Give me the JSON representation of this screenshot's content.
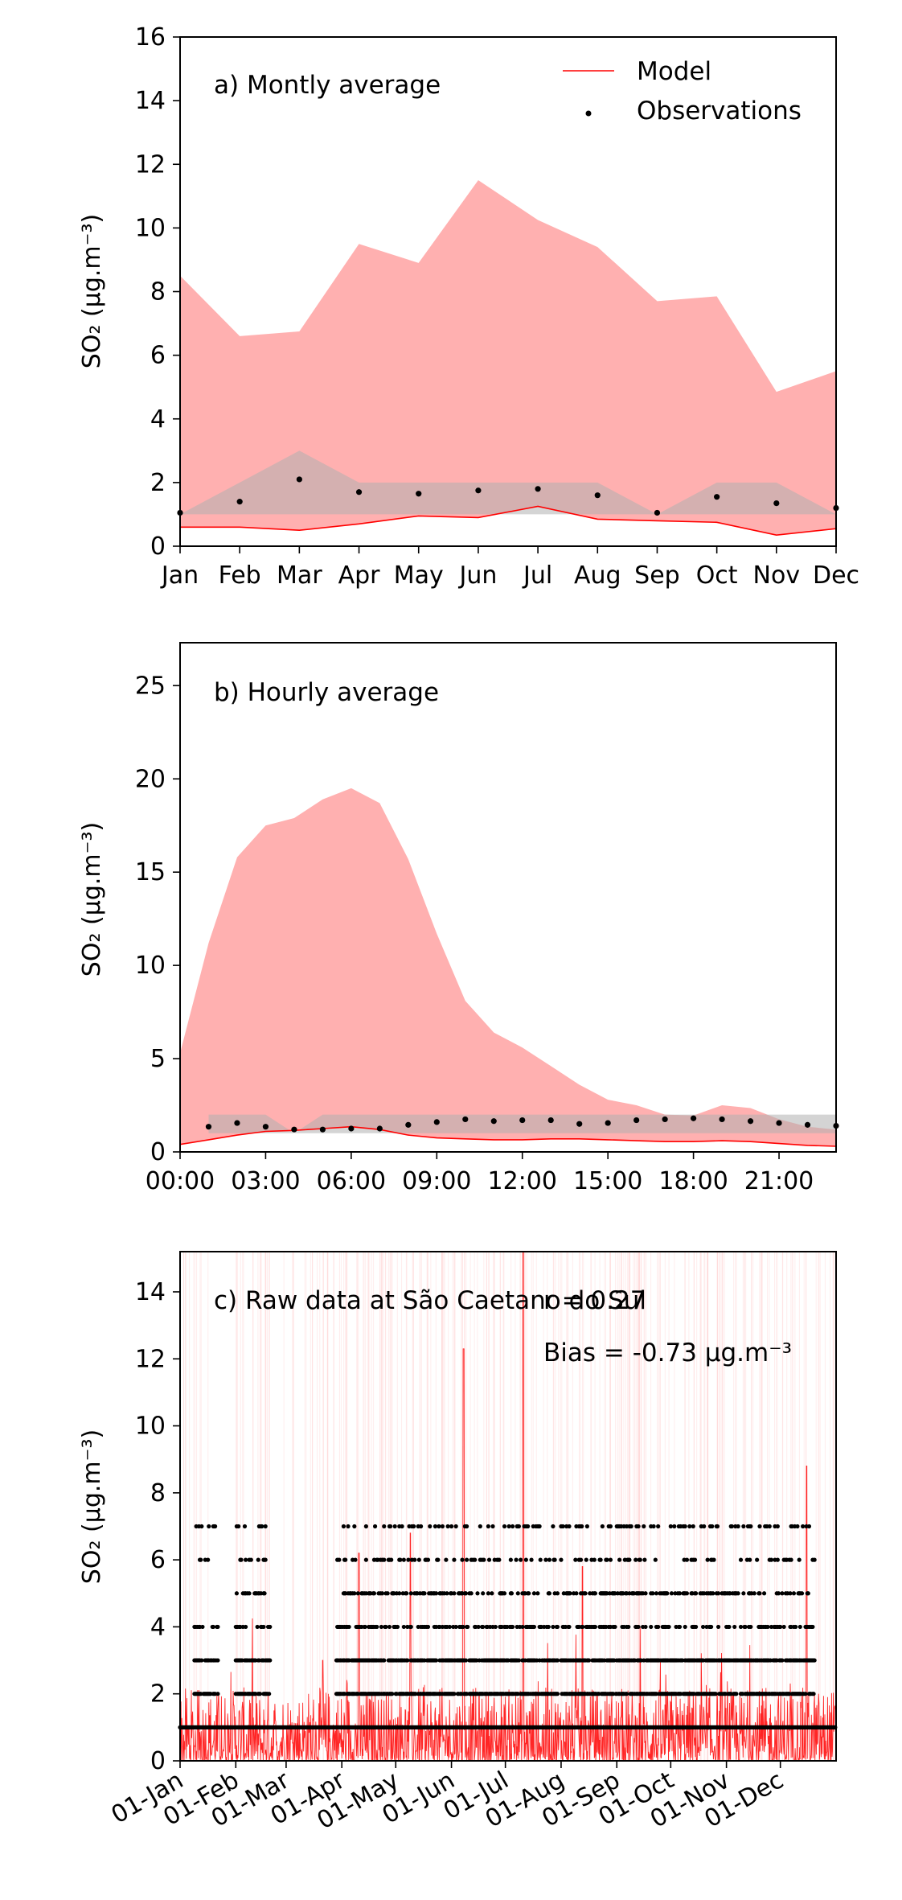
{
  "chart_data": [
    {
      "type": "area",
      "panel_label": "a) Montly average",
      "ylabel": "SO₂ (μg.m⁻³)",
      "ylim": [
        0,
        16
      ],
      "yticks": [
        0,
        2,
        4,
        6,
        8,
        10,
        12,
        14,
        16
      ],
      "categories": [
        "Jan",
        "Feb",
        "Mar",
        "Apr",
        "May",
        "Jun",
        "Jul",
        "Aug",
        "Sep",
        "Oct",
        "Nov",
        "Dec"
      ],
      "legend": {
        "placement": "top-right",
        "entries": [
          {
            "label": "Model",
            "kind": "line",
            "color": "#ff0000"
          },
          {
            "label": "Observations",
            "kind": "point",
            "color": "#000000"
          }
        ]
      },
      "colors": {
        "model": "#ff0000",
        "model_band": "#ffb0b0",
        "obs": "#000000",
        "obs_band": "#b0b0b0"
      },
      "series": [
        {
          "name": "Model",
          "role": "line",
          "values": [
            0.6,
            0.6,
            0.5,
            0.7,
            0.95,
            0.9,
            1.25,
            0.85,
            0.8,
            0.75,
            0.35,
            0.55
          ]
        },
        {
          "role": "band",
          "lower": [
            0.6,
            0.6,
            0.5,
            0.7,
            0.95,
            0.9,
            1.25,
            0.85,
            0.8,
            0.75,
            0.35,
            0.55
          ],
          "upper": [
            8.5,
            6.6,
            6.75,
            9.5,
            8.9,
            11.5,
            10.25,
            9.4,
            7.7,
            7.85,
            4.85,
            5.5
          ]
        },
        {
          "name": "Observations",
          "role": "points",
          "values": [
            1.05,
            1.4,
            2.1,
            1.7,
            1.65,
            1.75,
            1.8,
            1.6,
            1.05,
            1.55,
            1.35,
            1.2
          ]
        },
        {
          "role": "obs_band",
          "lower": [
            1,
            1,
            1,
            1,
            1,
            1,
            1,
            1,
            1,
            1,
            1,
            1
          ],
          "upper": [
            1,
            2,
            3,
            2,
            2,
            2,
            2,
            2,
            1,
            2,
            2,
            1
          ]
        }
      ]
    },
    {
      "type": "area",
      "panel_label": "b) Hourly average",
      "ylabel": "SO₂ (μg.m⁻³)",
      "ylim": [
        0,
        27.3
      ],
      "yticks": [
        0,
        5,
        10,
        15,
        20,
        25
      ],
      "xlim": [
        0,
        23
      ],
      "xticks": [
        0,
        3,
        6,
        9,
        12,
        15,
        18,
        21
      ],
      "xtick_labels": [
        "00:00",
        "03:00",
        "06:00",
        "09:00",
        "12:00",
        "15:00",
        "18:00",
        "21:00"
      ],
      "hours": [
        0,
        1,
        2,
        3,
        4,
        5,
        6,
        7,
        8,
        9,
        10,
        11,
        12,
        13,
        14,
        15,
        16,
        17,
        18,
        19,
        20,
        21,
        22,
        23
      ],
      "series": [
        {
          "name": "Model",
          "role": "line",
          "values": [
            0.4,
            0.65,
            0.9,
            1.1,
            1.15,
            1.25,
            1.35,
            1.2,
            0.9,
            0.75,
            0.7,
            0.65,
            0.65,
            0.7,
            0.7,
            0.65,
            0.6,
            0.55,
            0.55,
            0.6,
            0.55,
            0.45,
            0.35,
            0.3
          ]
        },
        {
          "role": "band",
          "lower": [
            0.4,
            0.65,
            0.9,
            1.1,
            1.15,
            1.25,
            1.35,
            1.2,
            0.9,
            0.75,
            0.7,
            0.65,
            0.65,
            0.7,
            0.7,
            0.65,
            0.6,
            0.55,
            0.55,
            0.6,
            0.55,
            0.45,
            0.35,
            0.3
          ],
          "upper": [
            5.3,
            11.2,
            15.8,
            17.5,
            17.9,
            18.9,
            19.5,
            18.7,
            15.7,
            11.7,
            8.1,
            6.4,
            5.6,
            4.6,
            3.6,
            2.8,
            2.5,
            2.0,
            1.95,
            2.5,
            2.35,
            1.75,
            1.35,
            1.2
          ]
        },
        {
          "name": "Observations",
          "role": "points",
          "hour_offset": 1,
          "values": [
            1.35,
            1.55,
            1.35,
            1.2,
            1.2,
            1.25,
            1.25,
            1.45,
            1.6,
            1.75,
            1.65,
            1.7,
            1.7,
            1.5,
            1.55,
            1.7,
            1.75,
            1.8,
            1.75,
            1.65,
            1.55,
            1.45,
            1.4
          ]
        },
        {
          "role": "obs_band",
          "lower": 1,
          "upper": [
            2,
            2,
            2,
            2,
            1,
            2,
            2,
            2,
            2,
            2,
            2,
            2,
            2,
            2,
            2,
            2,
            2,
            2,
            2,
            2,
            2,
            2,
            2,
            2
          ]
        }
      ]
    },
    {
      "type": "line",
      "panel_label": "c) Raw data at São Caetano do Sul",
      "stats": {
        "r_text": "r = 0.27",
        "bias_text": "Bias = -0.73 μg.m⁻³"
      },
      "ylabel": "SO₂ (μg.m⁻³)",
      "ylim": [
        0,
        15.2
      ],
      "yticks": [
        0,
        2,
        4,
        6,
        8,
        10,
        12,
        14
      ],
      "xtick_labels": [
        "01-Jan",
        "01-Feb",
        "01-Mar",
        "01-Apr",
        "01-May",
        "01-Jun",
        "01-Jul",
        "01-Aug",
        "01-Sep",
        "01-Oct",
        "01-Nov",
        "01-Dec"
      ],
      "xtick_days": [
        0,
        31,
        59,
        90,
        120,
        151,
        181,
        212,
        243,
        273,
        304,
        334
      ],
      "days_in_year": 365,
      "model_summary": {
        "typical_min": 0,
        "typical_max": 2,
        "peaks": [
          {
            "date": "01-Mar",
            "value": 3.0
          },
          {
            "date": "01-Apr",
            "value": 6.2
          },
          {
            "date": "01-May",
            "value": 6.8
          },
          {
            "date": "01-Jun",
            "value": 12.3
          },
          {
            "date": "01-Jul",
            "value": 15.2
          },
          {
            "date": "01-Aug",
            "value": 5.8
          },
          {
            "date": "01-Dec",
            "value": 8.8
          }
        ]
      },
      "observed_levels": [
        0,
        1,
        2,
        3,
        4,
        5,
        6,
        7
      ],
      "observed_ranges": [
        {
          "from": "09-Jan",
          "to": "22-Jan",
          "levels": [
            1,
            2,
            3,
            4,
            6,
            7
          ]
        },
        {
          "from": "01-Feb",
          "to": "20-Feb",
          "levels": [
            1,
            2,
            3,
            4,
            5,
            6,
            7
          ]
        },
        {
          "from": "29-Mar",
          "to": "30-Jul",
          "levels": [
            1,
            2,
            3,
            4,
            5,
            6,
            7
          ]
        },
        {
          "from": "01-Aug",
          "to": "20-Dec",
          "levels": [
            1,
            2,
            3,
            4,
            5,
            6,
            7
          ]
        }
      ]
    }
  ]
}
